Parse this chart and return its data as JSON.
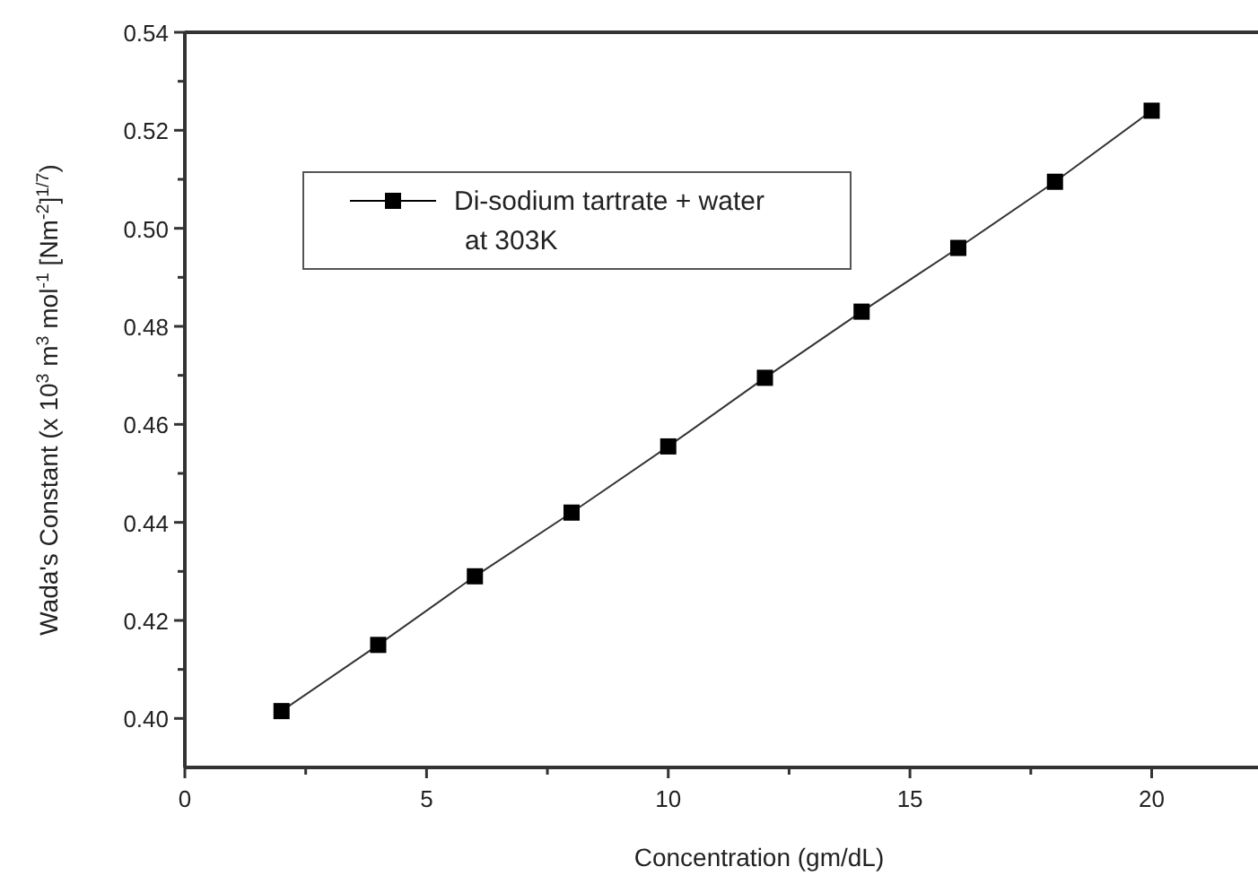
{
  "chart_data": {
    "type": "line",
    "xlabel": "Concentration (gm/dL)",
    "ylabel": "Wada's Constant (x 10$^{3}$ m$^{3}$ mol$^{-1}$ [Nm$^{-2}$]$^{1/7}$)",
    "x": [
      2,
      4,
      6,
      8,
      10,
      12,
      14,
      16,
      18,
      20
    ],
    "series": [
      {
        "name": "Di-sodium tartrate + water\nat 303K",
        "color": "#000000",
        "values": [
          0.4015,
          0.415,
          0.429,
          0.442,
          0.4555,
          0.4695,
          0.483,
          0.496,
          0.5095,
          0.524
        ]
      }
    ],
    "xlim": [
      0,
      22.2
    ],
    "xticks": [
      0,
      {
        "value": 2.5,
        "label": null
      },
      5,
      {
        "value": 7.5,
        "label": null
      },
      10,
      {
        "value": 12.5,
        "label": null
      },
      15,
      {
        "value": 17.5,
        "label": null
      },
      20
    ],
    "ylim": [
      0.39,
      0.54
    ],
    "yticks": [
      {
        "value": 0.4,
        "label": "0.40"
      },
      {
        "value": 0.41,
        "label": null
      },
      0.42,
      {
        "value": 0.43,
        "label": null
      },
      0.44,
      {
        "value": 0.45,
        "label": null
      },
      0.46,
      {
        "value": 0.47,
        "label": null
      },
      0.48,
      {
        "value": 0.49,
        "label": null
      },
      {
        "value": 0.5,
        "label": "0.50"
      },
      {
        "value": 0.51,
        "label": null
      },
      0.52,
      {
        "value": 0.53,
        "label": null
      },
      0.54
    ],
    "marker": "square",
    "line_style": "solid",
    "legend": "top left",
    "grid": false
  }
}
